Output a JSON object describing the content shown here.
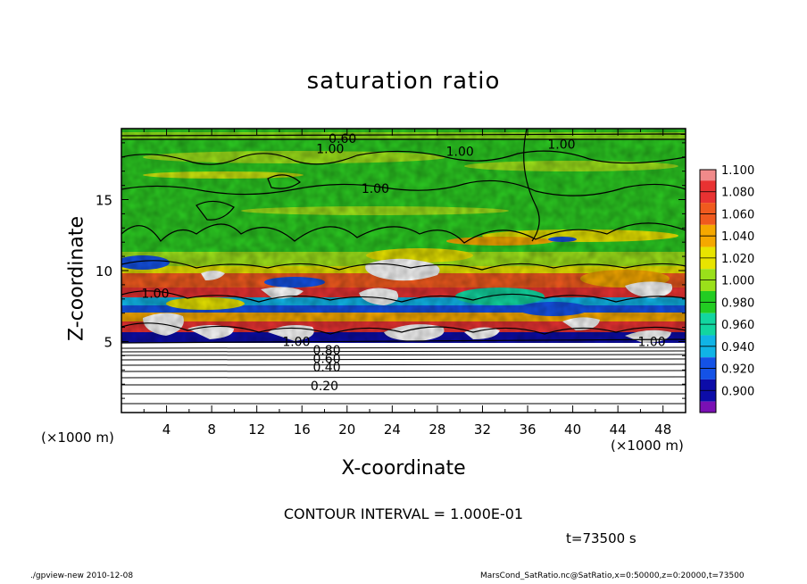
{
  "header": {
    "title": "saturation ratio"
  },
  "chart_data": {
    "type": "heatmap",
    "title": "saturation ratio",
    "xlabel": "X-coordinate",
    "ylabel": "Z-coordinate",
    "x_units": "(×1000 m)",
    "z_units": "(×1000 m)",
    "xlim": [
      0,
      50
    ],
    "ylim": [
      0,
      20
    ],
    "x_ticks": [
      "4",
      "8",
      "12",
      "16",
      "20",
      "24",
      "28",
      "32",
      "36",
      "40",
      "44",
      "48"
    ],
    "y_ticks": [
      "5",
      "10",
      "15"
    ],
    "colorbar": {
      "levels": [
        "1.100",
        "1.080",
        "1.060",
        "1.040",
        "1.020",
        "1.000",
        "0.980",
        "0.960",
        "0.940",
        "0.920",
        "0.900"
      ],
      "colors": [
        "#f08a8a",
        "#e83232",
        "#f05a1e",
        "#f5a800",
        "#e8e400",
        "#9ae01a",
        "#22cc22",
        "#12d6a0",
        "#10b4e6",
        "#1452e6",
        "#0c0ca8",
        "#7a10b4"
      ]
    },
    "contour_labels": [
      {
        "text": "1.00",
        "x": 18.5,
        "z": 18.6
      },
      {
        "text": "1.00",
        "x": 30,
        "z": 18.4
      },
      {
        "text": "1.00",
        "x": 39,
        "z": 18.9
      },
      {
        "text": "0.60",
        "x": 19.6,
        "z": 19.3
      },
      {
        "text": "1.00",
        "x": 22.5,
        "z": 15.8
      },
      {
        "text": "1.00",
        "x": 3,
        "z": 8.4
      },
      {
        "text": "1.00",
        "x": 15.5,
        "z": 5.0
      },
      {
        "text": "0.80",
        "x": 18.2,
        "z": 4.4
      },
      {
        "text": "0.60",
        "x": 18.2,
        "z": 3.8
      },
      {
        "text": "0.40",
        "x": 18.2,
        "z": 3.2
      },
      {
        "text": "0.20",
        "x": 18,
        "z": 1.9
      },
      {
        "text": "1.00",
        "x": 47,
        "z": 5.0
      }
    ],
    "contour_interval": "CONTOUR INTERVAL = 1.000E-01",
    "time": "t=73500 s"
  },
  "annotations": {
    "x_units_left": "(×1000 m)",
    "x_units_right": "(×1000 m)",
    "contour_interval": "CONTOUR INTERVAL = 1.000E-01",
    "time": "t=73500 s"
  },
  "footer": {
    "left": "./gpview-new   2010-12-08",
    "right": "MarsCond_SatRatio.nc@SatRatio,x=0:50000,z=0:20000,t=73500"
  }
}
